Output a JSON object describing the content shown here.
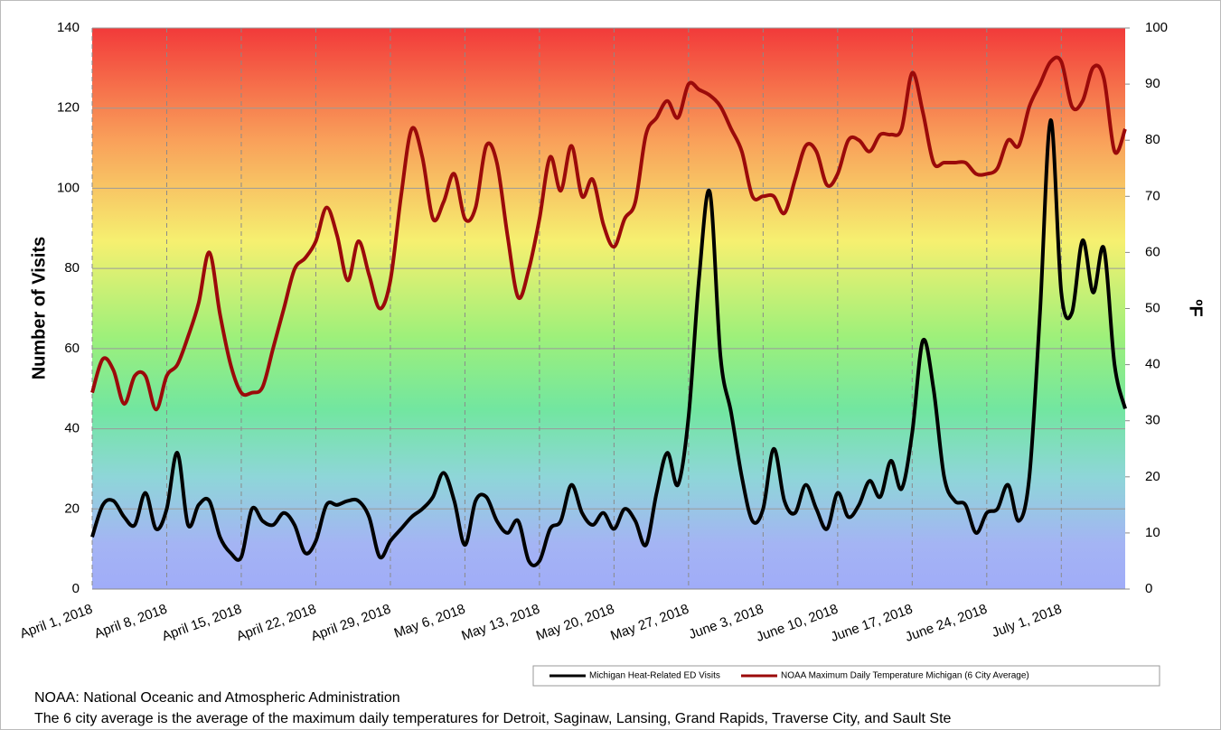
{
  "chart_data": {
    "type": "line",
    "y_label": "Number of Visits",
    "y2_label": "ºF",
    "x": [
      "2018-04-01",
      "2018-04-02",
      "2018-04-03",
      "2018-04-04",
      "2018-04-05",
      "2018-04-06",
      "2018-04-07",
      "2018-04-08",
      "2018-04-09",
      "2018-04-10",
      "2018-04-11",
      "2018-04-12",
      "2018-04-13",
      "2018-04-14",
      "2018-04-15",
      "2018-04-16",
      "2018-04-17",
      "2018-04-18",
      "2018-04-19",
      "2018-04-20",
      "2018-04-21",
      "2018-04-22",
      "2018-04-23",
      "2018-04-24",
      "2018-04-25",
      "2018-04-26",
      "2018-04-27",
      "2018-04-28",
      "2018-04-29",
      "2018-04-30",
      "2018-05-01",
      "2018-05-02",
      "2018-05-03",
      "2018-05-04",
      "2018-05-05",
      "2018-05-06",
      "2018-05-07",
      "2018-05-08",
      "2018-05-09",
      "2018-05-10",
      "2018-05-11",
      "2018-05-12",
      "2018-05-13",
      "2018-05-14",
      "2018-05-15",
      "2018-05-16",
      "2018-05-17",
      "2018-05-18",
      "2018-05-19",
      "2018-05-20",
      "2018-05-21",
      "2018-05-22",
      "2018-05-23",
      "2018-05-24",
      "2018-05-25",
      "2018-05-26",
      "2018-05-27",
      "2018-05-28",
      "2018-05-29",
      "2018-05-30",
      "2018-05-31",
      "2018-06-01",
      "2018-06-02",
      "2018-06-03",
      "2018-06-04",
      "2018-06-05",
      "2018-06-06",
      "2018-06-07",
      "2018-06-08",
      "2018-06-09",
      "2018-06-10",
      "2018-06-11",
      "2018-06-12",
      "2018-06-13",
      "2018-06-14",
      "2018-06-15",
      "2018-06-16",
      "2018-06-17",
      "2018-06-18",
      "2018-06-19",
      "2018-06-20",
      "2018-06-21",
      "2018-06-22",
      "2018-06-23",
      "2018-06-24",
      "2018-06-25",
      "2018-06-26",
      "2018-06-27",
      "2018-06-28",
      "2018-06-29",
      "2018-06-30",
      "2018-07-01",
      "2018-07-02",
      "2018-07-03",
      "2018-07-04",
      "2018-07-05",
      "2018-07-06",
      "2018-07-07"
    ],
    "xlim": [
      "2018-04-01",
      "2018-07-07"
    ],
    "xticks": [
      {
        "value": "2018-04-01",
        "label": "April 1, 2018"
      },
      {
        "value": "2018-04-08",
        "label": "April 8, 2018"
      },
      {
        "value": "2018-04-15",
        "label": "April 15, 2018"
      },
      {
        "value": "2018-04-22",
        "label": "April 22, 2018"
      },
      {
        "value": "2018-04-29",
        "label": "April 29, 2018"
      },
      {
        "value": "2018-05-06",
        "label": "May 6, 2018"
      },
      {
        "value": "2018-05-13",
        "label": "May 13, 2018"
      },
      {
        "value": "2018-05-20",
        "label": "May 20, 2018"
      },
      {
        "value": "2018-05-27",
        "label": "May 27, 2018"
      },
      {
        "value": "2018-06-03",
        "label": "June 3, 2018"
      },
      {
        "value": "2018-06-10",
        "label": "June 10, 2018"
      },
      {
        "value": "2018-06-17",
        "label": "June 17, 2018"
      },
      {
        "value": "2018-06-24",
        "label": "June 24, 2018"
      },
      {
        "value": "2018-07-01",
        "label": "July 1, 2018"
      }
    ],
    "ylim": [
      0,
      140
    ],
    "yticks": [
      0,
      20,
      40,
      60,
      80,
      100,
      120,
      140
    ],
    "y2lim": [
      0,
      100
    ],
    "y2ticks": [
      0,
      10,
      20,
      30,
      40,
      50,
      60,
      70,
      80,
      90,
      100
    ],
    "grid": true,
    "series": [
      {
        "name": "Michigan Heat-Related ED Visits",
        "color": "#000000",
        "axis": "y",
        "values": [
          13,
          21,
          22,
          18,
          16,
          24,
          15,
          20,
          34,
          16,
          21,
          22,
          13,
          9,
          8,
          20,
          17,
          16,
          19,
          16,
          9,
          12,
          21,
          21,
          22,
          22,
          18,
          8,
          12,
          15,
          18,
          20,
          23,
          29,
          22,
          11,
          22,
          23,
          17,
          14,
          17,
          7,
          7,
          15,
          17,
          26,
          19,
          16,
          19,
          15,
          20,
          17,
          11,
          24,
          34,
          26,
          43,
          78,
          99,
          58,
          44,
          28,
          17,
          20,
          35,
          22,
          19,
          26,
          20,
          15,
          24,
          18,
          21,
          27,
          23,
          32,
          25,
          39,
          62,
          50,
          28,
          22,
          21,
          14,
          19,
          20,
          26,
          17,
          28,
          69,
          117,
          74,
          69,
          87,
          74,
          85,
          56,
          45
        ]
      },
      {
        "name": "NOAA Maximum Daily Temperature Michigan (6 City Average)",
        "color": "#9b0a0a",
        "axis": "y2",
        "values": [
          35,
          41,
          39,
          33,
          38,
          38,
          32,
          38,
          40,
          45,
          51,
          60,
          49,
          40,
          35,
          35,
          36,
          43,
          50,
          57,
          59,
          62,
          68,
          63,
          55,
          62,
          56,
          50,
          55,
          70,
          82,
          77,
          66,
          69,
          74,
          66,
          68,
          79,
          76,
          63,
          52,
          57,
          66,
          77,
          71,
          79,
          70,
          73,
          65,
          61,
          66,
          69,
          81,
          84,
          87,
          84,
          90,
          89,
          88,
          86,
          82,
          78,
          70,
          70,
          70,
          67,
          73,
          79,
          78,
          72,
          74,
          80,
          80,
          78,
          81,
          81,
          82,
          92,
          85,
          76,
          76,
          76,
          76,
          74,
          74,
          75,
          80,
          79,
          86,
          90,
          94,
          94,
          86,
          87,
          93,
          91,
          78,
          82
        ]
      }
    ],
    "notes": [
      "NOAA: National Oceanic and Atmospheric Administration",
      "The 6 city average is the average of the maximum daily temperatures for Detroit, Saginaw, Lansing, Grand Rapids, Traverse City, and Sault Ste"
    ]
  }
}
